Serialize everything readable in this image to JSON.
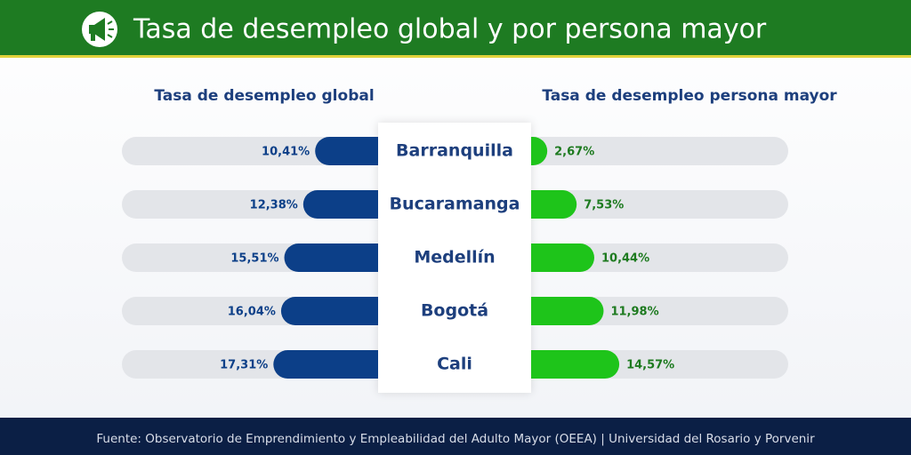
{
  "chart_data": {
    "type": "butterfly-bar",
    "title": "Tasa de desempleo global y por persona mayor",
    "source": "Fuente: Observatorio de Emprendimiento y Empleabilidad del Adulto Mayor (OEEA) | Universidad del Rosario y Porvenir",
    "categories": [
      "Barranquilla",
      "Bucaramanga",
      "Medellín",
      "Bogotá",
      "Cali"
    ],
    "series": [
      {
        "name": "Tasa de desempleo global",
        "color": "#0c3f88",
        "values": [
          10.41,
          12.38,
          15.51,
          16.04,
          17.31
        ],
        "value_labels": [
          "10,41%",
          "12,38%",
          "15,51%",
          "16,04%",
          "17,31%"
        ]
      },
      {
        "name": "Tasa de desempleo persona mayor",
        "color": "#1ec41a",
        "values": [
          2.67,
          7.53,
          10.44,
          11.98,
          14.57
        ],
        "value_labels": [
          "2,67%",
          "7,53%",
          "10,44%",
          "11,98%",
          "14,57%"
        ]
      }
    ]
  }
}
